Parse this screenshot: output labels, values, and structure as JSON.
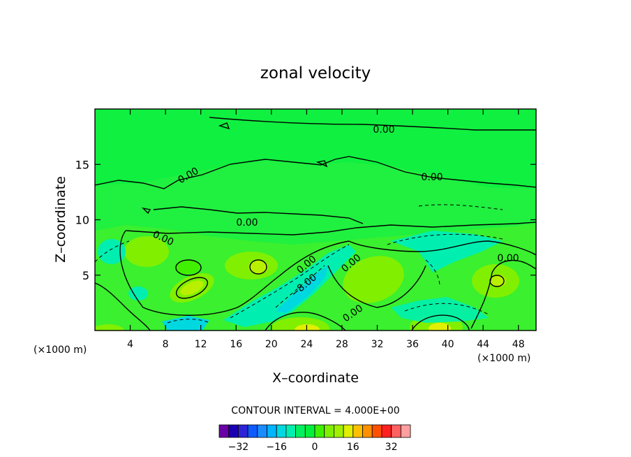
{
  "chart_data": {
    "type": "contour",
    "title": "zonal velocity",
    "xlabel": "X–coordinate",
    "ylabel": "Z–coordinate",
    "x_unit_left": "(×1000 m)",
    "x_unit_right": "(×1000 m)",
    "xlim": [
      0,
      50
    ],
    "ylim": [
      0,
      20
    ],
    "x_ticks": [
      {
        "value": 4,
        "label": "4"
      },
      {
        "value": 8,
        "label": "8"
      },
      {
        "value": 12,
        "label": "12"
      },
      {
        "value": 16,
        "label": "16"
      },
      {
        "value": 20,
        "label": "20"
      },
      {
        "value": 24,
        "label": "24"
      },
      {
        "value": 28,
        "label": "28"
      },
      {
        "value": 32,
        "label": "32"
      },
      {
        "value": 36,
        "label": "36"
      },
      {
        "value": 40,
        "label": "40"
      },
      {
        "value": 44,
        "label": "44"
      },
      {
        "value": 48,
        "label": "48"
      }
    ],
    "y_ticks": [
      {
        "value": 5,
        "label": "5"
      },
      {
        "value": 10,
        "label": "10"
      },
      {
        "value": 15,
        "label": "15"
      }
    ],
    "contour_interval_text": "CONTOUR INTERVAL = 4.000E+00",
    "contour_labels": [
      {
        "x": 33.0,
        "z": 18.3,
        "text": "0.00"
      },
      {
        "x": 38.5,
        "z": 13.8,
        "text": "0.00"
      },
      {
        "x": 10.7,
        "z": 14.0,
        "text": "0.00"
      },
      {
        "x": 17.5,
        "z": 9.5,
        "text": "0.00"
      },
      {
        "x": 7.5,
        "z": 8.2,
        "text": "0.00"
      },
      {
        "x": 24.0,
        "z": 6.0,
        "text": "0.00"
      },
      {
        "x": 29.5,
        "z": 6.2,
        "text": "0.00"
      },
      {
        "x": 46.5,
        "z": 6.5,
        "text": "0.00"
      },
      {
        "x": 23.0,
        "z": 3.8,
        "text": "−8.00"
      },
      {
        "x": 29.5,
        "z": 1.8,
        "text": "0.00"
      }
    ],
    "colorbar": {
      "levels": [
        -36,
        -32,
        -28,
        -24,
        -20,
        -16,
        -12,
        -8,
        -4,
        0,
        4,
        8,
        12,
        16,
        20,
        24,
        28,
        32,
        36
      ],
      "colors": [
        "#6a00a8",
        "#1b00b3",
        "#2d24d6",
        "#0d5bff",
        "#1a8cff",
        "#00b4ff",
        "#00d8e0",
        "#00efb0",
        "#00f060",
        "#00f03c",
        "#40f000",
        "#80f000",
        "#a0f000",
        "#e0f000",
        "#ffc000",
        "#ff9000",
        "#ff5000",
        "#ff2020",
        "#ff6060",
        "#ff9f9f"
      ],
      "tick_labels": [
        {
          "value": -32,
          "label": "−32"
        },
        {
          "value": -16,
          "label": "−16"
        },
        {
          "value": 0,
          "label": "0"
        },
        {
          "value": 16,
          "label": "16"
        },
        {
          "value": 32,
          "label": "32"
        }
      ]
    }
  }
}
